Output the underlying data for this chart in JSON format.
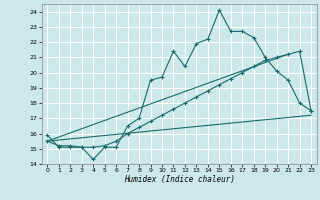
{
  "xlabel": "Humidex (Indice chaleur)",
  "xlim": [
    -0.5,
    23.5
  ],
  "ylim": [
    14,
    24.5
  ],
  "yticks": [
    14,
    15,
    16,
    17,
    18,
    19,
    20,
    21,
    22,
    23,
    24
  ],
  "xticks": [
    0,
    1,
    2,
    3,
    4,
    5,
    6,
    7,
    8,
    9,
    10,
    11,
    12,
    13,
    14,
    15,
    16,
    17,
    18,
    19,
    20,
    21,
    22,
    23
  ],
  "bg_color": "#cce8e8",
  "line_color": "#1a6b6b",
  "grid_color": "#ffffff",
  "line1_x": [
    0,
    1,
    2,
    3,
    4,
    5,
    6,
    7,
    8,
    9,
    10,
    11,
    12,
    13,
    14,
    15,
    16,
    17,
    18,
    19,
    20,
    21,
    22,
    23
  ],
  "line1_y": [
    15.9,
    15.1,
    15.1,
    15.1,
    14.3,
    15.1,
    15.1,
    16.5,
    17.0,
    19.5,
    19.7,
    21.4,
    20.4,
    21.9,
    22.2,
    24.1,
    22.7,
    22.7,
    22.3,
    21.0,
    20.1,
    19.5,
    18.0,
    17.5
  ],
  "line2_x": [
    0,
    1,
    2,
    3,
    4,
    5,
    6,
    7,
    8,
    9,
    10,
    11,
    12,
    13,
    14,
    15,
    16,
    17,
    18,
    19,
    20,
    21,
    22,
    23
  ],
  "line2_y": [
    15.5,
    15.2,
    15.2,
    15.1,
    15.1,
    15.2,
    15.5,
    16.0,
    16.4,
    16.8,
    17.2,
    17.6,
    18.0,
    18.4,
    18.8,
    19.2,
    19.6,
    20.0,
    20.4,
    20.8,
    21.0,
    21.2,
    21.4,
    17.5
  ],
  "line3_x": [
    0,
    21
  ],
  "line3_y": [
    15.5,
    21.2
  ],
  "line4_x": [
    0,
    23
  ],
  "line4_y": [
    15.5,
    17.2
  ]
}
